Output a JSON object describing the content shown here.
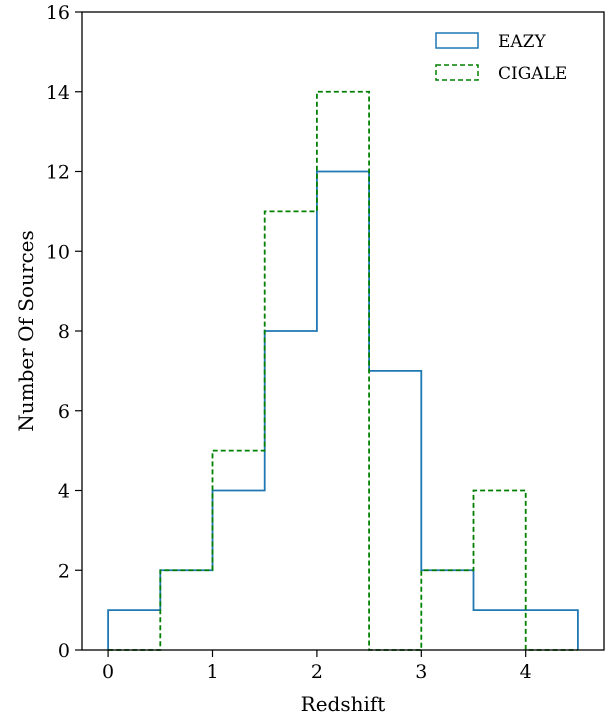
{
  "chart_data": {
    "type": "histogram",
    "xlabel": "Redshift",
    "ylabel": "Number Of Sources",
    "xlim": [
      -0.25,
      4.75
    ],
    "ylim": [
      0,
      16
    ],
    "xticks": [
      0,
      1,
      2,
      3,
      4
    ],
    "yticks": [
      0,
      2,
      4,
      6,
      8,
      10,
      12,
      14,
      16
    ],
    "bin_edges": [
      0,
      0.5,
      1,
      1.5,
      2,
      2.5,
      3,
      3.5,
      4,
      4.5
    ],
    "series": [
      {
        "name": "EAZY",
        "counts": [
          1,
          2,
          4,
          8,
          12,
          7,
          2,
          1,
          1
        ],
        "color": "#1f77b4",
        "style": "solid"
      },
      {
        "name": "CIGALE",
        "counts": [
          0,
          2,
          5,
          11,
          14,
          0,
          2,
          4,
          0
        ],
        "color": "#008000",
        "style": "dashed"
      }
    ],
    "legend": {
      "position": "top-right"
    },
    "grid": false
  }
}
